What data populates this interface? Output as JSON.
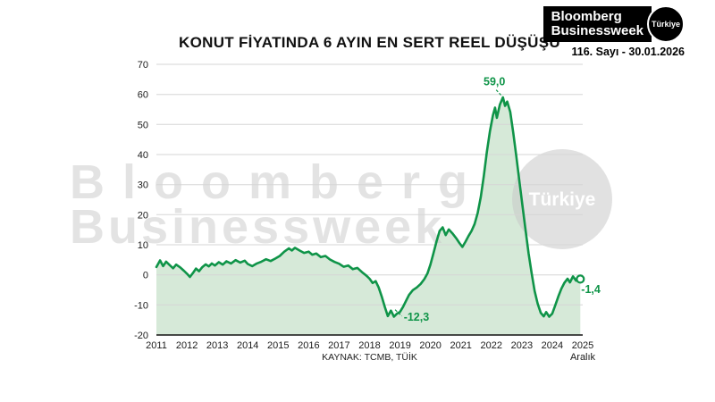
{
  "masthead": {
    "logo_line1": "Bloomberg",
    "logo_line2": "Businessweek",
    "logo_badge": "Türkiye",
    "issue": "116. Sayı - 30.01.2026"
  },
  "chart_data": {
    "type": "area",
    "title": "KONUT FİYATINDA 6 AYIN EN SERT REEL DÜŞÜŞÜ",
    "source": "KAYNAK: TCMB, TÜİK",
    "xlim": [
      2011,
      2025
    ],
    "ylim": [
      -20,
      70
    ],
    "grid": true,
    "legend": "none",
    "x_ticks": [
      2011,
      2012,
      2013,
      2014,
      2015,
      2016,
      2017,
      2018,
      2019,
      2020,
      2021,
      2022,
      2023,
      2024,
      2025
    ],
    "x_tick_sublabel": {
      "year": 2025,
      "text": "Aralık"
    },
    "y_ticks": [
      70,
      60,
      50,
      40,
      30,
      20,
      10,
      0,
      -10,
      -20
    ],
    "line_color": "#0f9448",
    "fill_color": "#d6e9d8",
    "annotation_color": "#0f9448",
    "watermark": {
      "line1": "Bloomberg",
      "line2": "Businessweek",
      "badge": "Türkiye"
    },
    "end_marker": true,
    "points": [
      [
        2011.0,
        2.6
      ],
      [
        2011.12,
        4.8
      ],
      [
        2011.22,
        2.9
      ],
      [
        2011.32,
        4.4
      ],
      [
        2011.45,
        3.1
      ],
      [
        2011.55,
        2.2
      ],
      [
        2011.65,
        3.4
      ],
      [
        2011.78,
        2.5
      ],
      [
        2011.9,
        1.4
      ],
      [
        2012.0,
        0.4
      ],
      [
        2012.1,
        -0.7
      ],
      [
        2012.2,
        0.6
      ],
      [
        2012.3,
        2.1
      ],
      [
        2012.4,
        1.2
      ],
      [
        2012.5,
        2.5
      ],
      [
        2012.62,
        3.5
      ],
      [
        2012.72,
        2.8
      ],
      [
        2012.82,
        3.8
      ],
      [
        2012.92,
        3.1
      ],
      [
        2013.05,
        4.2
      ],
      [
        2013.18,
        3.4
      ],
      [
        2013.3,
        4.5
      ],
      [
        2013.45,
        3.8
      ],
      [
        2013.6,
        4.9
      ],
      [
        2013.75,
        4.1
      ],
      [
        2013.9,
        4.7
      ],
      [
        2014.0,
        3.6
      ],
      [
        2014.15,
        2.9
      ],
      [
        2014.3,
        3.8
      ],
      [
        2014.45,
        4.4
      ],
      [
        2014.6,
        5.2
      ],
      [
        2014.75,
        4.6
      ],
      [
        2014.9,
        5.4
      ],
      [
        2015.05,
        6.3
      ],
      [
        2015.2,
        7.7
      ],
      [
        2015.35,
        8.8
      ],
      [
        2015.45,
        8.1
      ],
      [
        2015.55,
        9.0
      ],
      [
        2015.7,
        8.1
      ],
      [
        2015.85,
        7.3
      ],
      [
        2016.0,
        7.7
      ],
      [
        2016.12,
        6.7
      ],
      [
        2016.25,
        7.1
      ],
      [
        2016.4,
        5.9
      ],
      [
        2016.55,
        6.3
      ],
      [
        2016.7,
        5.1
      ],
      [
        2016.85,
        4.3
      ],
      [
        2017.0,
        3.7
      ],
      [
        2017.15,
        2.7
      ],
      [
        2017.3,
        3.1
      ],
      [
        2017.45,
        1.9
      ],
      [
        2017.6,
        2.3
      ],
      [
        2017.75,
        0.9
      ],
      [
        2017.9,
        -0.3
      ],
      [
        2018.0,
        -1.3
      ],
      [
        2018.1,
        -2.7
      ],
      [
        2018.2,
        -2.1
      ],
      [
        2018.3,
        -4.2
      ],
      [
        2018.4,
        -7.2
      ],
      [
        2018.5,
        -10.6
      ],
      [
        2018.6,
        -13.7
      ],
      [
        2018.7,
        -11.9
      ],
      [
        2018.8,
        -13.9
      ],
      [
        2018.9,
        -12.9
      ],
      [
        2019.0,
        -12.3
      ],
      [
        2019.1,
        -10.6
      ],
      [
        2019.2,
        -8.6
      ],
      [
        2019.3,
        -6.6
      ],
      [
        2019.42,
        -5.1
      ],
      [
        2019.55,
        -4.2
      ],
      [
        2019.68,
        -3.0
      ],
      [
        2019.8,
        -1.4
      ],
      [
        2019.9,
        0.4
      ],
      [
        2020.0,
        3.4
      ],
      [
        2020.1,
        7.2
      ],
      [
        2020.2,
        11.2
      ],
      [
        2020.3,
        14.6
      ],
      [
        2020.4,
        15.8
      ],
      [
        2020.5,
        13.2
      ],
      [
        2020.6,
        15.1
      ],
      [
        2020.72,
        13.8
      ],
      [
        2020.85,
        12.1
      ],
      [
        2020.95,
        10.6
      ],
      [
        2021.05,
        9.3
      ],
      [
        2021.15,
        11.0
      ],
      [
        2021.25,
        12.9
      ],
      [
        2021.35,
        14.6
      ],
      [
        2021.45,
        16.9
      ],
      [
        2021.55,
        20.6
      ],
      [
        2021.65,
        25.8
      ],
      [
        2021.75,
        32.8
      ],
      [
        2021.85,
        40.8
      ],
      [
        2021.95,
        47.6
      ],
      [
        2022.05,
        53.0
      ],
      [
        2022.12,
        55.6
      ],
      [
        2022.18,
        52.2
      ],
      [
        2022.28,
        56.6
      ],
      [
        2022.38,
        59.0
      ],
      [
        2022.45,
        56.2
      ],
      [
        2022.52,
        57.6
      ],
      [
        2022.62,
        54.2
      ],
      [
        2022.72,
        47.2
      ],
      [
        2022.82,
        39.4
      ],
      [
        2022.92,
        31.2
      ],
      [
        2023.02,
        23.2
      ],
      [
        2023.12,
        15.2
      ],
      [
        2023.22,
        7.2
      ],
      [
        2023.32,
        0.6
      ],
      [
        2023.42,
        -5.4
      ],
      [
        2023.52,
        -9.6
      ],
      [
        2023.62,
        -12.6
      ],
      [
        2023.72,
        -13.8
      ],
      [
        2023.8,
        -12.4
      ],
      [
        2023.9,
        -13.9
      ],
      [
        2024.0,
        -12.9
      ],
      [
        2024.1,
        -10.1
      ],
      [
        2024.2,
        -7.2
      ],
      [
        2024.3,
        -4.6
      ],
      [
        2024.4,
        -2.6
      ],
      [
        2024.5,
        -1.3
      ],
      [
        2024.58,
        -2.5
      ],
      [
        2024.68,
        -0.5
      ],
      [
        2024.78,
        -1.9
      ],
      [
        2024.86,
        -0.6
      ],
      [
        2024.92,
        -1.4
      ]
    ],
    "annotations": [
      {
        "text": "59,0",
        "tx": 2022.1,
        "ty": 64.0,
        "anchor": "middle",
        "line": [
          2022.16,
          61.5,
          2022.33,
          59.6
        ]
      },
      {
        "text": "-12,3",
        "tx": 2019.12,
        "ty": -14.3,
        "anchor": "start",
        "line": [
          2018.84,
          -11.6,
          2019.06,
          -13.7
        ]
      },
      {
        "text": "-1,4",
        "tx": 2024.95,
        "ty": -5.0,
        "anchor": "start",
        "line": null
      }
    ]
  }
}
